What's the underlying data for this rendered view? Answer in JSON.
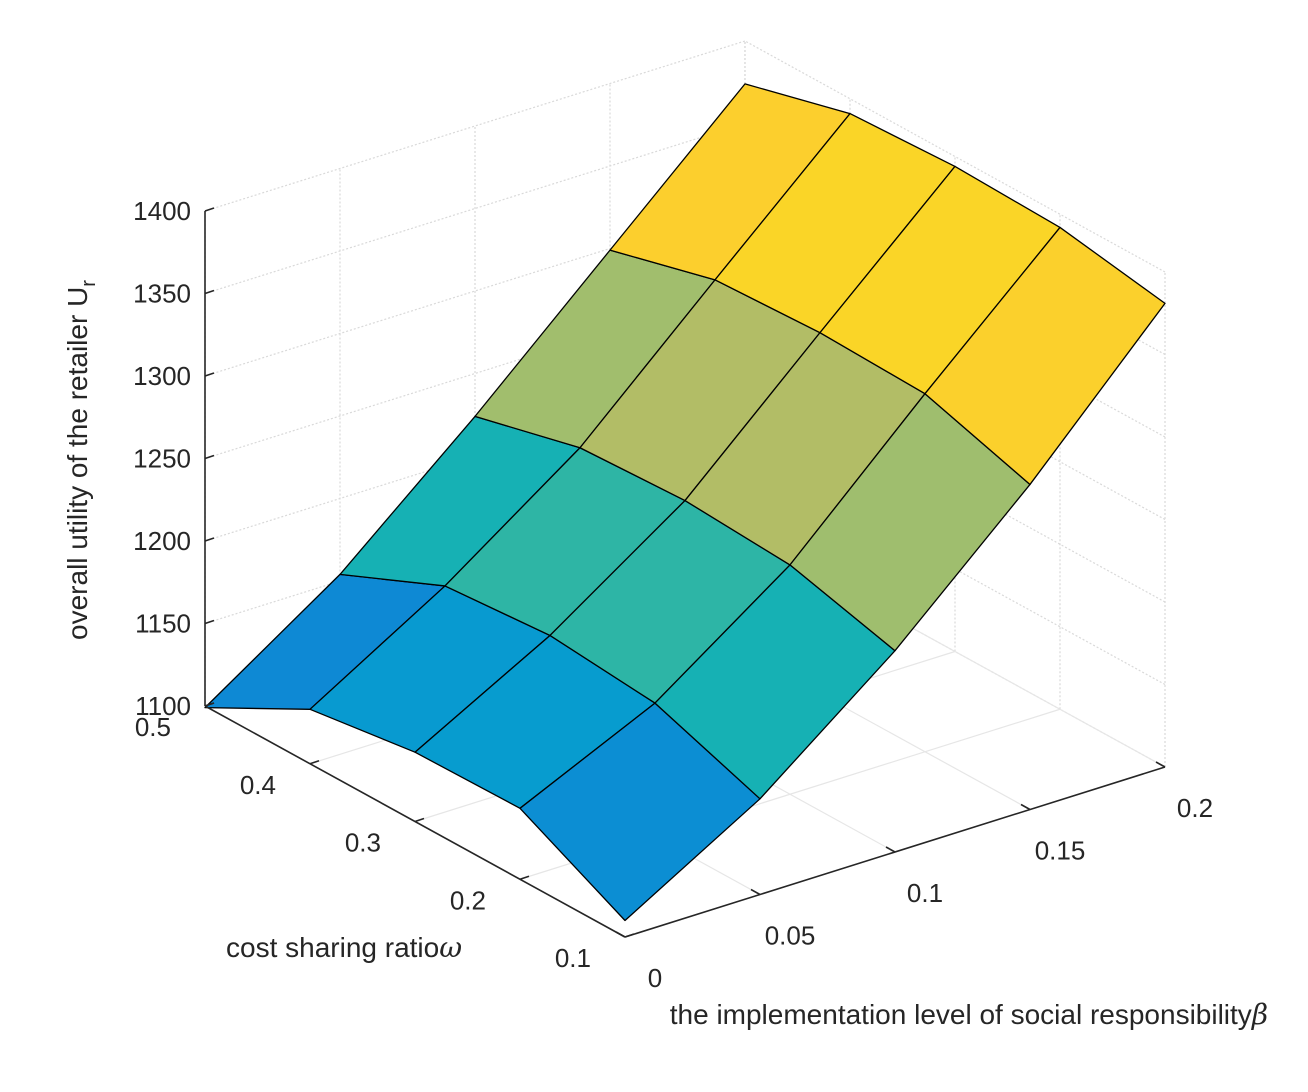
{
  "chart_data": {
    "type": "surface3d",
    "title": "",
    "xlabel": "the implementation level of social responsibility",
    "xlabel_symbol": "β",
    "ylabel": "cost sharing ratio",
    "ylabel_symbol": "ω",
    "zlabel": "overall utility of the retailer U",
    "zlabel_subscript": "r",
    "x_ticks": [
      0,
      0.05,
      0.1,
      0.15,
      0.2
    ],
    "x_tick_labels": [
      "0",
      "0.05",
      "0.1",
      "0.15",
      "0.2"
    ],
    "y_ticks": [
      0.1,
      0.2,
      0.3,
      0.4,
      0.5
    ],
    "y_tick_labels": [
      "0.1",
      "0.2",
      "0.3",
      "0.4",
      "0.5"
    ],
    "z_ticks": [
      1100,
      1150,
      1200,
      1250,
      1300,
      1350,
      1400
    ],
    "z_tick_labels": [
      "1100",
      "1150",
      "1200",
      "1250",
      "1300",
      "1350",
      "1400"
    ],
    "xlim": [
      0,
      0.2
    ],
    "ylim": [
      0.1,
      0.5
    ],
    "zlim": [
      1100,
      1400
    ],
    "grid": true,
    "colormap": "parula",
    "x": [
      0,
      0.05,
      0.1,
      0.15,
      0.2
    ],
    "y": [
      0.1,
      0.2,
      0.3,
      0.4,
      0.5
    ],
    "z": [
      [
        1110,
        1158,
        1222,
        1297,
        1381
      ],
      [
        1143,
        1181,
        1239,
        1317,
        1392
      ],
      [
        1142,
        1187,
        1243,
        1319,
        1394
      ],
      [
        1133,
        1182,
        1240,
        1316,
        1391
      ],
      [
        1099,
        1154,
        1224,
        1299,
        1374
      ]
    ]
  }
}
